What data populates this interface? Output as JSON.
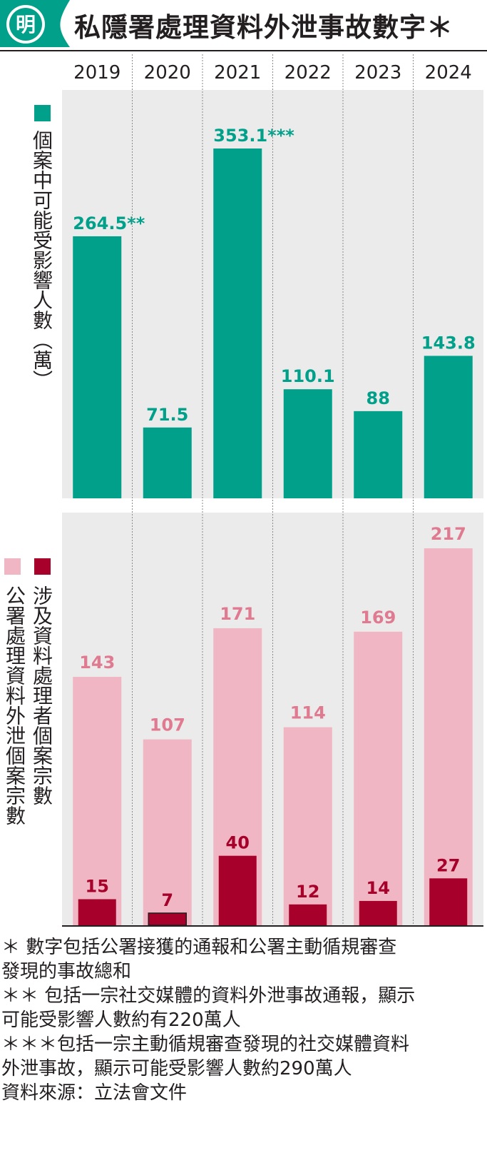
{
  "header": {
    "logo_char": "明",
    "title": "私隱署處理資料外泄事故數字＊"
  },
  "legend": {
    "teal": "個案中可能受影響人數（萬）",
    "pink": "公署處理資料外泄個案宗數",
    "red": "涉及資料處理者個案宗數"
  },
  "colors": {
    "teal": "#00a08a",
    "pink_bar": "#f0b6c3",
    "pink_label": "#e07a90",
    "red": "#a6002b",
    "panel_bg": "#ebebeb"
  },
  "chart_data": [
    {
      "type": "bar",
      "categories": [
        "2019",
        "2020",
        "2021",
        "2022",
        "2023",
        "2024"
      ],
      "series": [
        {
          "name": "個案中可能受影響人數（萬）",
          "values": [
            264.5,
            71.5,
            353.1,
            110.1,
            88,
            143.8
          ],
          "labels": [
            "264.5**",
            "71.5",
            "353.1***",
            "110.1",
            "88",
            "143.8"
          ]
        }
      ]
    },
    {
      "type": "bar",
      "categories": [
        "2019",
        "2020",
        "2021",
        "2022",
        "2023",
        "2024"
      ],
      "series": [
        {
          "name": "公署處理資料外泄個案宗數",
          "values": [
            143,
            107,
            171,
            114,
            169,
            217
          ],
          "labels": [
            "143",
            "107",
            "171",
            "114",
            "169",
            "217"
          ]
        },
        {
          "name": "涉及資料處理者個案宗數",
          "values": [
            15,
            7,
            40,
            12,
            14,
            27
          ],
          "labels": [
            "15",
            "7",
            "40",
            "12",
            "14",
            "27"
          ]
        }
      ]
    }
  ],
  "notes": [
    "＊ 數字包括公署接獲的通報和公署主動循規審查",
    "發現的事故總和",
    "＊＊ 包括一宗社交媒體的資料外泄事故通報，顯示",
    "可能受影響人數約有220萬人",
    "＊＊＊包括一宗主動循規審查發現的社交媒體資料",
    "外泄事故，顯示可能受影響人數約290萬人",
    "資料來源：立法會文件"
  ]
}
